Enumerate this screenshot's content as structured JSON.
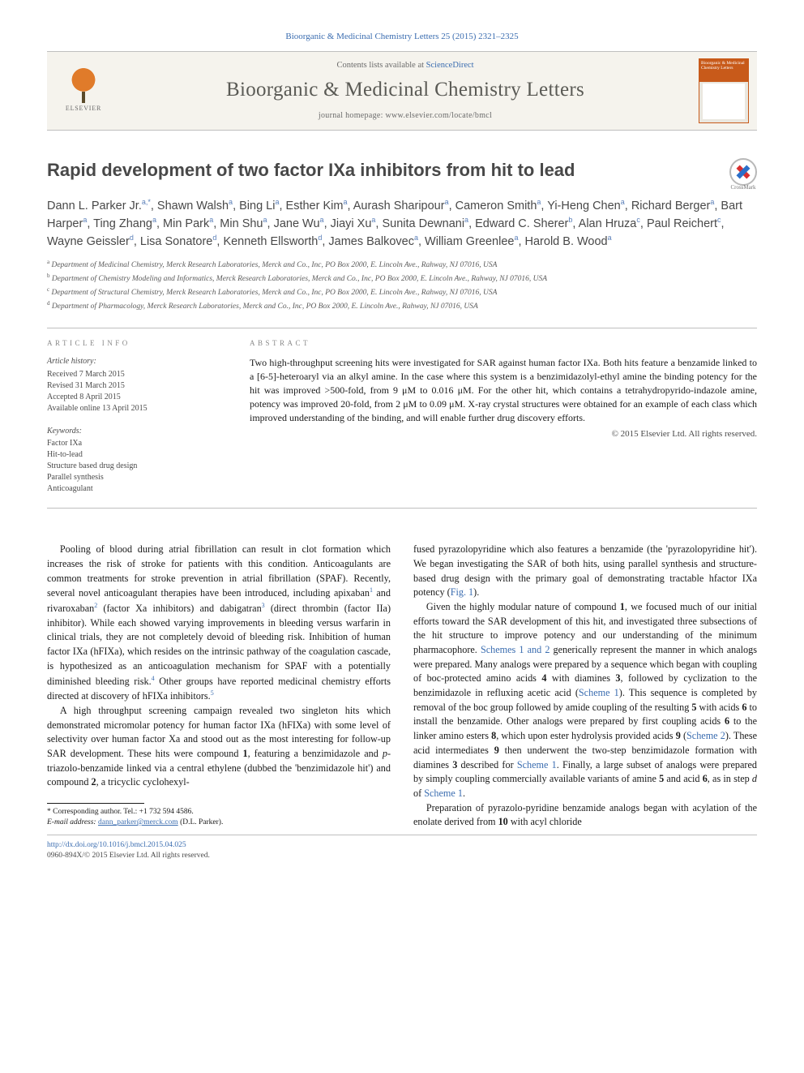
{
  "citation": "Bioorganic & Medicinal Chemistry Letters 25 (2015) 2321–2325",
  "masthead": {
    "contents_prefix": "Contents lists available at ",
    "contents_link": "ScienceDirect",
    "journal": "Bioorganic & Medicinal Chemistry Letters",
    "homepage": "journal homepage: www.elsevier.com/locate/bmcl",
    "publisher": "ELSEVIER",
    "cover_top": "Bioorganic & Medicinal Chemistry Letters"
  },
  "title": "Rapid development of two factor IXa inhibitors from hit to lead",
  "crossmark": "CrossMark",
  "authors_html": "Dann L. Parker Jr.<span class='sup'>a,*</span>, Shawn Walsh<span class='sup'>a</span>, Bing Li<span class='sup'>a</span>, Esther Kim<span class='sup'>a</span>, Aurash Sharipour<span class='sup'>a</span>, Cameron Smith<span class='sup'>a</span>, Yi-Heng Chen<span class='sup'>a</span>, Richard Berger<span class='sup'>a</span>, Bart Harper<span class='sup'>a</span>, Ting Zhang<span class='sup'>a</span>, Min Park<span class='sup'>a</span>, Min Shu<span class='sup'>a</span>, Jane Wu<span class='sup'>a</span>, Jiayi Xu<span class='sup'>a</span>, Sunita Dewnani<span class='sup'>a</span>, Edward C. Sherer<span class='sup'>b</span>, Alan Hruza<span class='sup'>c</span>, Paul Reichert<span class='sup'>c</span>, Wayne Geissler<span class='sup'>d</span>, Lisa Sonatore<span class='sup'>d</span>, Kenneth Ellsworth<span class='sup'>d</span>, James Balkovec<span class='sup'>a</span>, William Greenlee<span class='sup'>a</span>, Harold B. Wood<span class='sup'>a</span>",
  "affiliations": [
    {
      "sup": "a",
      "text": "Department of Medicinal Chemistry, Merck Research Laboratories, Merck and Co., Inc, PO Box 2000, E. Lincoln Ave., Rahway, NJ 07016, USA"
    },
    {
      "sup": "b",
      "text": "Department of Chemistry Modeling and Informatics, Merck Research Laboratories, Merck and Co., Inc, PO Box 2000, E. Lincoln Ave., Rahway, NJ 07016, USA"
    },
    {
      "sup": "c",
      "text": "Department of Structural Chemistry, Merck Research Laboratories, Merck and Co., Inc, PO Box 2000, E. Lincoln Ave., Rahway, NJ 07016, USA"
    },
    {
      "sup": "d",
      "text": "Department of Pharmacology, Merck Research Laboratories, Merck and Co., Inc, PO Box 2000, E. Lincoln Ave., Rahway, NJ 07016, USA"
    }
  ],
  "info": {
    "label": "ARTICLE INFO",
    "history_head": "Article history:",
    "history": [
      "Received 7 March 2015",
      "Revised 31 March 2015",
      "Accepted 8 April 2015",
      "Available online 13 April 2015"
    ],
    "keywords_head": "Keywords:",
    "keywords": [
      "Factor IXa",
      "Hit-to-lead",
      "Structure based drug design",
      "Parallel synthesis",
      "Anticoagulant"
    ]
  },
  "abstract": {
    "label": "ABSTRACT",
    "text": "Two high-throughput screening hits were investigated for SAR against human factor IXa. Both hits feature a benzamide linked to a [6-5]-heteroaryl via an alkyl amine. In the case where this system is a benzimidazolyl-ethyl amine the binding potency for the hit was improved >500-fold, from 9 μM to 0.016 μM. For the other hit, which contains a tetrahydropyrido-indazole amine, potency was improved 20-fold, from 2 μM to 0.09 μM. X-ray crystal structures were obtained for an example of each class which improved understanding of the binding, and will enable further drug discovery efforts.",
    "copyright": "© 2015 Elsevier Ltd. All rights reserved."
  },
  "body": {
    "p1": "Pooling of blood during atrial fibrillation can result in clot formation which increases the risk of stroke for patients with this condition. Anticoagulants are common treatments for stroke prevention in atrial fibrillation (SPAF). Recently, several novel anticoagulant therapies have been introduced, including apixaban",
    "p1r1": "1",
    "p1b": " and rivaroxaban",
    "p1r2": "2",
    "p1c": " (factor Xa inhibitors) and dabigatran",
    "p1r3": "3",
    "p1d": " (direct thrombin (factor IIa) inhibitor). While each showed varying improvements in bleeding versus warfarin in clinical trials, they are not completely devoid of bleeding risk. Inhibition of human factor IXa (hFIXa), which resides on the intrinsic pathway of the coagulation cascade, is hypothesized as an anticoagulation mechanism for SPAF with a potentially diminished bleeding risk.",
    "p1r4": "4",
    "p1e": " Other groups have reported medicinal chemistry efforts directed at discovery of hFIXa inhibitors.",
    "p1r5": "5",
    "p2a": "A high throughput screening campaign revealed two singleton hits which demonstrated micromolar potency for human factor IXa (hFIXa) with some level of selectivity over human factor Xa and stood out as the most interesting for follow-up SAR development. These hits were compound ",
    "p2b": ", featuring a benzimidazole and ",
    "p2c": "-triazolo-benzamide linked via a central ethylene (dubbed the 'benzimidazole hit') and compound ",
    "p2d": ", a tricyclic cyclohexyl-",
    "p3a": "fused pyrazolopyridine which also features a benzamide (the 'pyrazolopyridine hit'). We began investigating the SAR of both hits, using parallel synthesis and structure-based drug design with the primary goal of demonstrating tractable hfactor IXa potency (",
    "p3fig": "Fig. 1",
    "p3b": ").",
    "p4a": "Given the highly modular nature of compound ",
    "p4b": ", we focused much of our initial efforts toward the SAR development of this hit, and investigated three subsections of the hit structure to improve potency and our understanding of the minimum pharmacophore. ",
    "p4sch": "Schemes 1 and 2",
    "p4c": " generically represent the manner in which analogs were prepared. Many analogs were prepared by a sequence which began with coupling of boc-protected amino acids ",
    "p4d": " with diamines ",
    "p4e": ", followed by cyclization to the benzimidazole in refluxing acetic acid (",
    "p4sch1": "Scheme 1",
    "p4f": "). This sequence is completed by removal of the boc group followed by amide coupling of the resulting ",
    "p4g": " with acids ",
    "p4h": " to install the benzamide. Other analogs were prepared by first coupling acids ",
    "p4i": " to the linker amino esters ",
    "p4j": ", which upon ester hydrolysis provided acids ",
    "p4k": " (",
    "p4sch2": "Scheme 2",
    "p4l": "). These acid intermediates ",
    "p4m": " then underwent the two-step benzimidazole formation with diamines ",
    "p4n": " described for ",
    "p4sch1b": "Scheme 1",
    "p4o": ". Finally, a large subset of analogs were prepared by simply coupling commercially available variants of amine ",
    "p4p": " and acid ",
    "p4q": ", as in step ",
    "p4r": " of ",
    "p4sch1c": "Scheme 1",
    "p4s": ".",
    "p5a": "Preparation of pyrazolo-pyridine benzamide analogs began with acylation of the enolate derived from ",
    "p5b": " with acyl chloride"
  },
  "footnote": {
    "corr": "* Corresponding author. Tel.: +1 732 594 4586.",
    "email_label": "E-mail address:",
    "email": "dann_parker@merck.com",
    "email_person": "(D.L. Parker)."
  },
  "bottom": {
    "doi": "http://dx.doi.org/10.1016/j.bmcl.2015.04.025",
    "line2": "0960-894X/© 2015 Elsevier Ltd. All rights reserved."
  }
}
